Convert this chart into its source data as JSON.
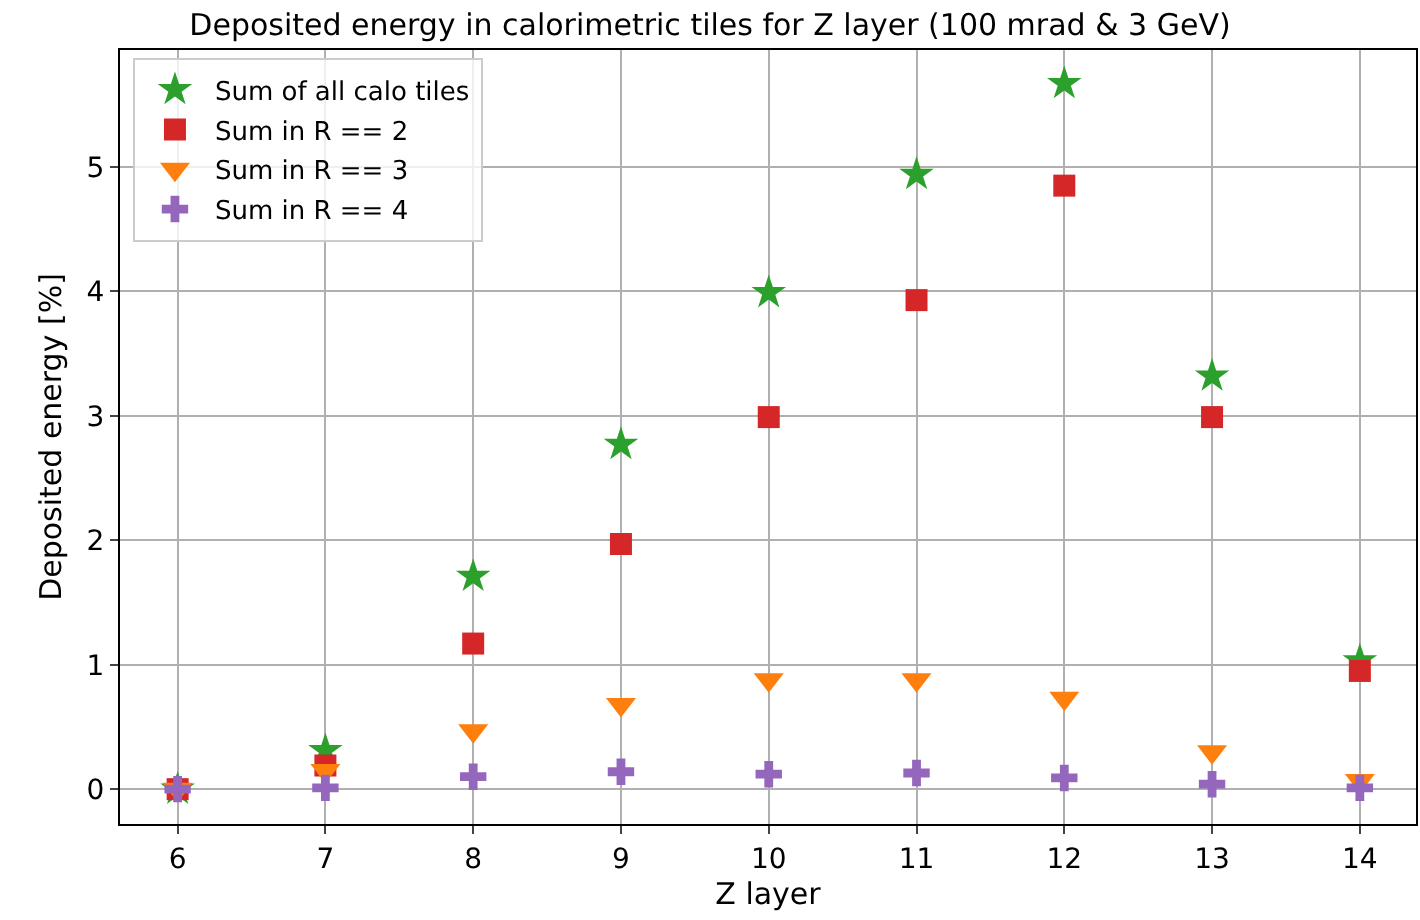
{
  "chart_data": {
    "type": "scatter",
    "title": "Deposited energy in calorimetric tiles for Z layer (100 mrad & 3 GeV)",
    "xlabel": "Z layer",
    "ylabel": "Deposited energy [%]",
    "x": [
      6,
      7,
      8,
      9,
      10,
      11,
      12,
      13,
      14
    ],
    "series": [
      {
        "name": "Sum of all calo tiles",
        "color": "#2ca02c",
        "marker": "star",
        "values": [
          0,
          0.31,
          1.71,
          2.77,
          3.99,
          4.94,
          5.67,
          3.32,
          1.03
        ]
      },
      {
        "name": "Sum in R == 2",
        "color": "#d62728",
        "marker": "square",
        "values": [
          0,
          0.19,
          1.17,
          1.97,
          2.99,
          3.93,
          4.85,
          2.99,
          0.95
        ]
      },
      {
        "name": "Sum in R == 3",
        "color": "#ff7f0e",
        "marker": "triangle",
        "values": [
          0,
          0.15,
          0.47,
          0.68,
          0.88,
          0.88,
          0.73,
          0.3,
          0.07
        ]
      },
      {
        "name": "Sum in R == 4",
        "color": "#9467bd",
        "marker": "cross",
        "values": [
          0,
          0.01,
          0.1,
          0.14,
          0.12,
          0.13,
          0.09,
          0.04,
          0.01
        ]
      }
    ],
    "xlim": [
      5.61,
      14.38
    ],
    "ylim": [
      -0.28,
      5.94
    ],
    "xticks": [
      6,
      7,
      8,
      9,
      10,
      11,
      12,
      13,
      14
    ],
    "yticks": [
      0,
      1,
      2,
      3,
      4,
      5
    ],
    "grid": true,
    "legend": "top left"
  }
}
